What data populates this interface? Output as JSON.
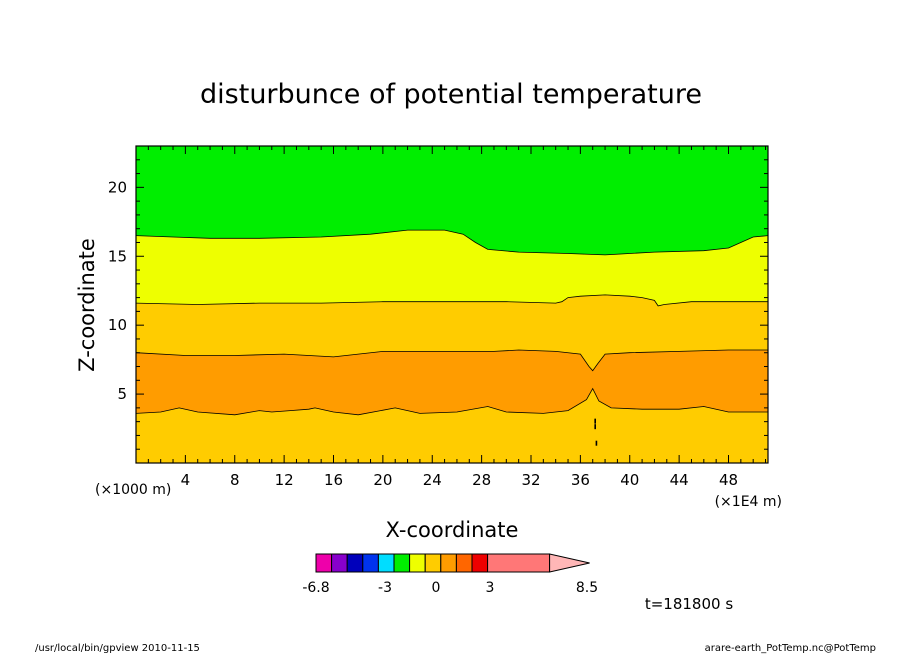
{
  "chart_data": {
    "type": "contour",
    "title": "disturbunce of potential temperature",
    "xlabel": "X-coordinate",
    "ylabel": "Z-coordinate",
    "x_unit_left": "(×1000 m)",
    "x_unit_right": "(×1E4 m)",
    "x_ticks": [
      "4",
      "8",
      "12",
      "16",
      "20",
      "24",
      "28",
      "32",
      "36",
      "40",
      "44",
      "48"
    ],
    "y_ticks": [
      "5",
      "10",
      "15",
      "20"
    ],
    "xlim": [
      0,
      51.2
    ],
    "ylim": [
      0,
      23
    ],
    "bands": [
      {
        "top": [
          [
            0,
            3.6
          ],
          [
            2,
            3.7
          ],
          [
            3.5,
            4.0
          ],
          [
            5,
            3.7
          ],
          [
            8,
            3.5
          ],
          [
            10,
            3.8
          ],
          [
            11,
            3.7
          ],
          [
            12.5,
            3.8
          ],
          [
            14,
            3.9
          ],
          [
            14.5,
            4.0
          ],
          [
            16,
            3.7
          ],
          [
            18,
            3.5
          ],
          [
            21,
            4.0
          ],
          [
            23,
            3.6
          ],
          [
            26,
            3.7
          ],
          [
            28.5,
            4.1
          ],
          [
            30,
            3.7
          ],
          [
            33,
            3.6
          ],
          [
            35,
            3.8
          ],
          [
            36.5,
            4.6
          ],
          [
            37,
            5.4
          ],
          [
            37.5,
            4.5
          ],
          [
            38.5,
            4.0
          ],
          [
            41,
            3.9
          ],
          [
            44,
            3.9
          ],
          [
            46,
            4.1
          ],
          [
            48,
            3.7
          ],
          [
            51.2,
            3.7
          ]
        ],
        "color": "#ff9c00"
      },
      {
        "top": [
          [
            0,
            8.0
          ],
          [
            4,
            7.8
          ],
          [
            8,
            7.8
          ],
          [
            12,
            7.9
          ],
          [
            16,
            7.7
          ],
          [
            20,
            8.1
          ],
          [
            25,
            8.1
          ],
          [
            29,
            8.1
          ],
          [
            31,
            8.2
          ],
          [
            34,
            8.1
          ],
          [
            36,
            7.9
          ],
          [
            36.7,
            7.0
          ],
          [
            37,
            6.7
          ],
          [
            37.4,
            7.2
          ],
          [
            38,
            7.9
          ],
          [
            40,
            8.0
          ],
          [
            44,
            8.1
          ],
          [
            48,
            8.2
          ],
          [
            51.2,
            8.2
          ]
        ],
        "color": "#ffcc00"
      },
      {
        "top": [
          [
            0,
            11.6
          ],
          [
            5,
            11.5
          ],
          [
            10,
            11.6
          ],
          [
            15,
            11.6
          ],
          [
            20,
            11.7
          ],
          [
            25,
            11.7
          ],
          [
            30,
            11.7
          ],
          [
            34,
            11.6
          ],
          [
            34.5,
            11.7
          ],
          [
            35,
            12.0
          ],
          [
            36,
            12.1
          ],
          [
            38,
            12.2
          ],
          [
            40,
            12.1
          ],
          [
            41,
            12.0
          ],
          [
            42,
            11.8
          ],
          [
            42.3,
            11.4
          ],
          [
            42.8,
            11.5
          ],
          [
            45,
            11.7
          ],
          [
            51.2,
            11.7
          ]
        ],
        "color": "#eeff00"
      },
      {
        "top": [
          [
            0,
            16.5
          ],
          [
            3,
            16.4
          ],
          [
            6,
            16.3
          ],
          [
            10,
            16.3
          ],
          [
            15,
            16.4
          ],
          [
            19,
            16.6
          ],
          [
            22,
            16.9
          ],
          [
            25,
            16.9
          ],
          [
            26.5,
            16.6
          ],
          [
            27.5,
            16.0
          ],
          [
            28.5,
            15.5
          ],
          [
            31,
            15.3
          ],
          [
            35,
            15.2
          ],
          [
            38,
            15.1
          ],
          [
            42,
            15.3
          ],
          [
            46,
            15.4
          ],
          [
            48,
            15.6
          ],
          [
            49,
            16.0
          ],
          [
            50,
            16.4
          ],
          [
            51.2,
            16.5
          ]
        ],
        "color": "#00ee00"
      }
    ],
    "base_color": "#ffcc00",
    "colorbar": {
      "colors": [
        "#ee00aa",
        "#8800cc",
        "#0000bb",
        "#0033ee",
        "#00ddff",
        "#00ee00",
        "#eeff00",
        "#ffcc00",
        "#ff9c00",
        "#ff6600",
        "#ee0000",
        "#ff7777",
        "#ffb7b7"
      ],
      "labels": [
        "-6.8",
        "-3",
        "0",
        "3",
        "8.5"
      ]
    },
    "time_label": "t=181800 s"
  },
  "footer": {
    "left": "/usr/local/bin/gpview   2010-11-15",
    "right": "arare-earth_PotTemp.nc@PotTemp"
  }
}
